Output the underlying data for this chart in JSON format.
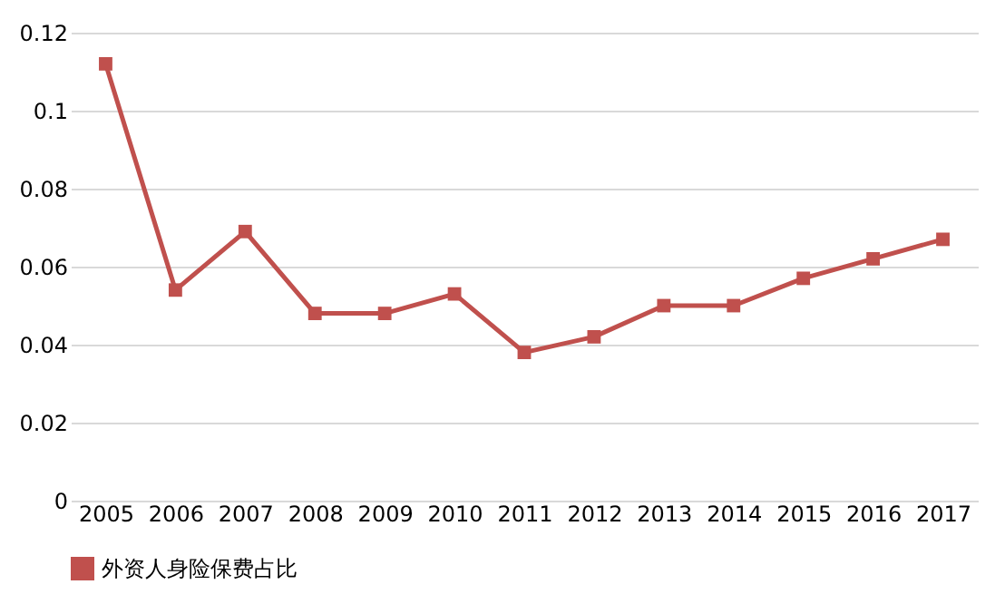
{
  "chart_data": {
    "type": "line",
    "categories": [
      "2005",
      "2006",
      "2007",
      "2008",
      "2009",
      "2010",
      "2011",
      "2012",
      "2013",
      "2014",
      "2015",
      "2016",
      "2017"
    ],
    "series": [
      {
        "name": "外资人身险保费占比",
        "color": "#c0504d",
        "values": [
          0.112,
          0.054,
          0.069,
          0.048,
          0.048,
          0.053,
          0.038,
          0.042,
          0.05,
          0.05,
          0.057,
          0.062,
          0.067
        ]
      }
    ],
    "ylim": [
      0,
      0.12
    ],
    "yticks": [
      0,
      0.02,
      0.04,
      0.06,
      0.08,
      0.1,
      0.12
    ],
    "grid": "y",
    "legend": "bottom",
    "marker": "square",
    "line_style": "solid"
  }
}
